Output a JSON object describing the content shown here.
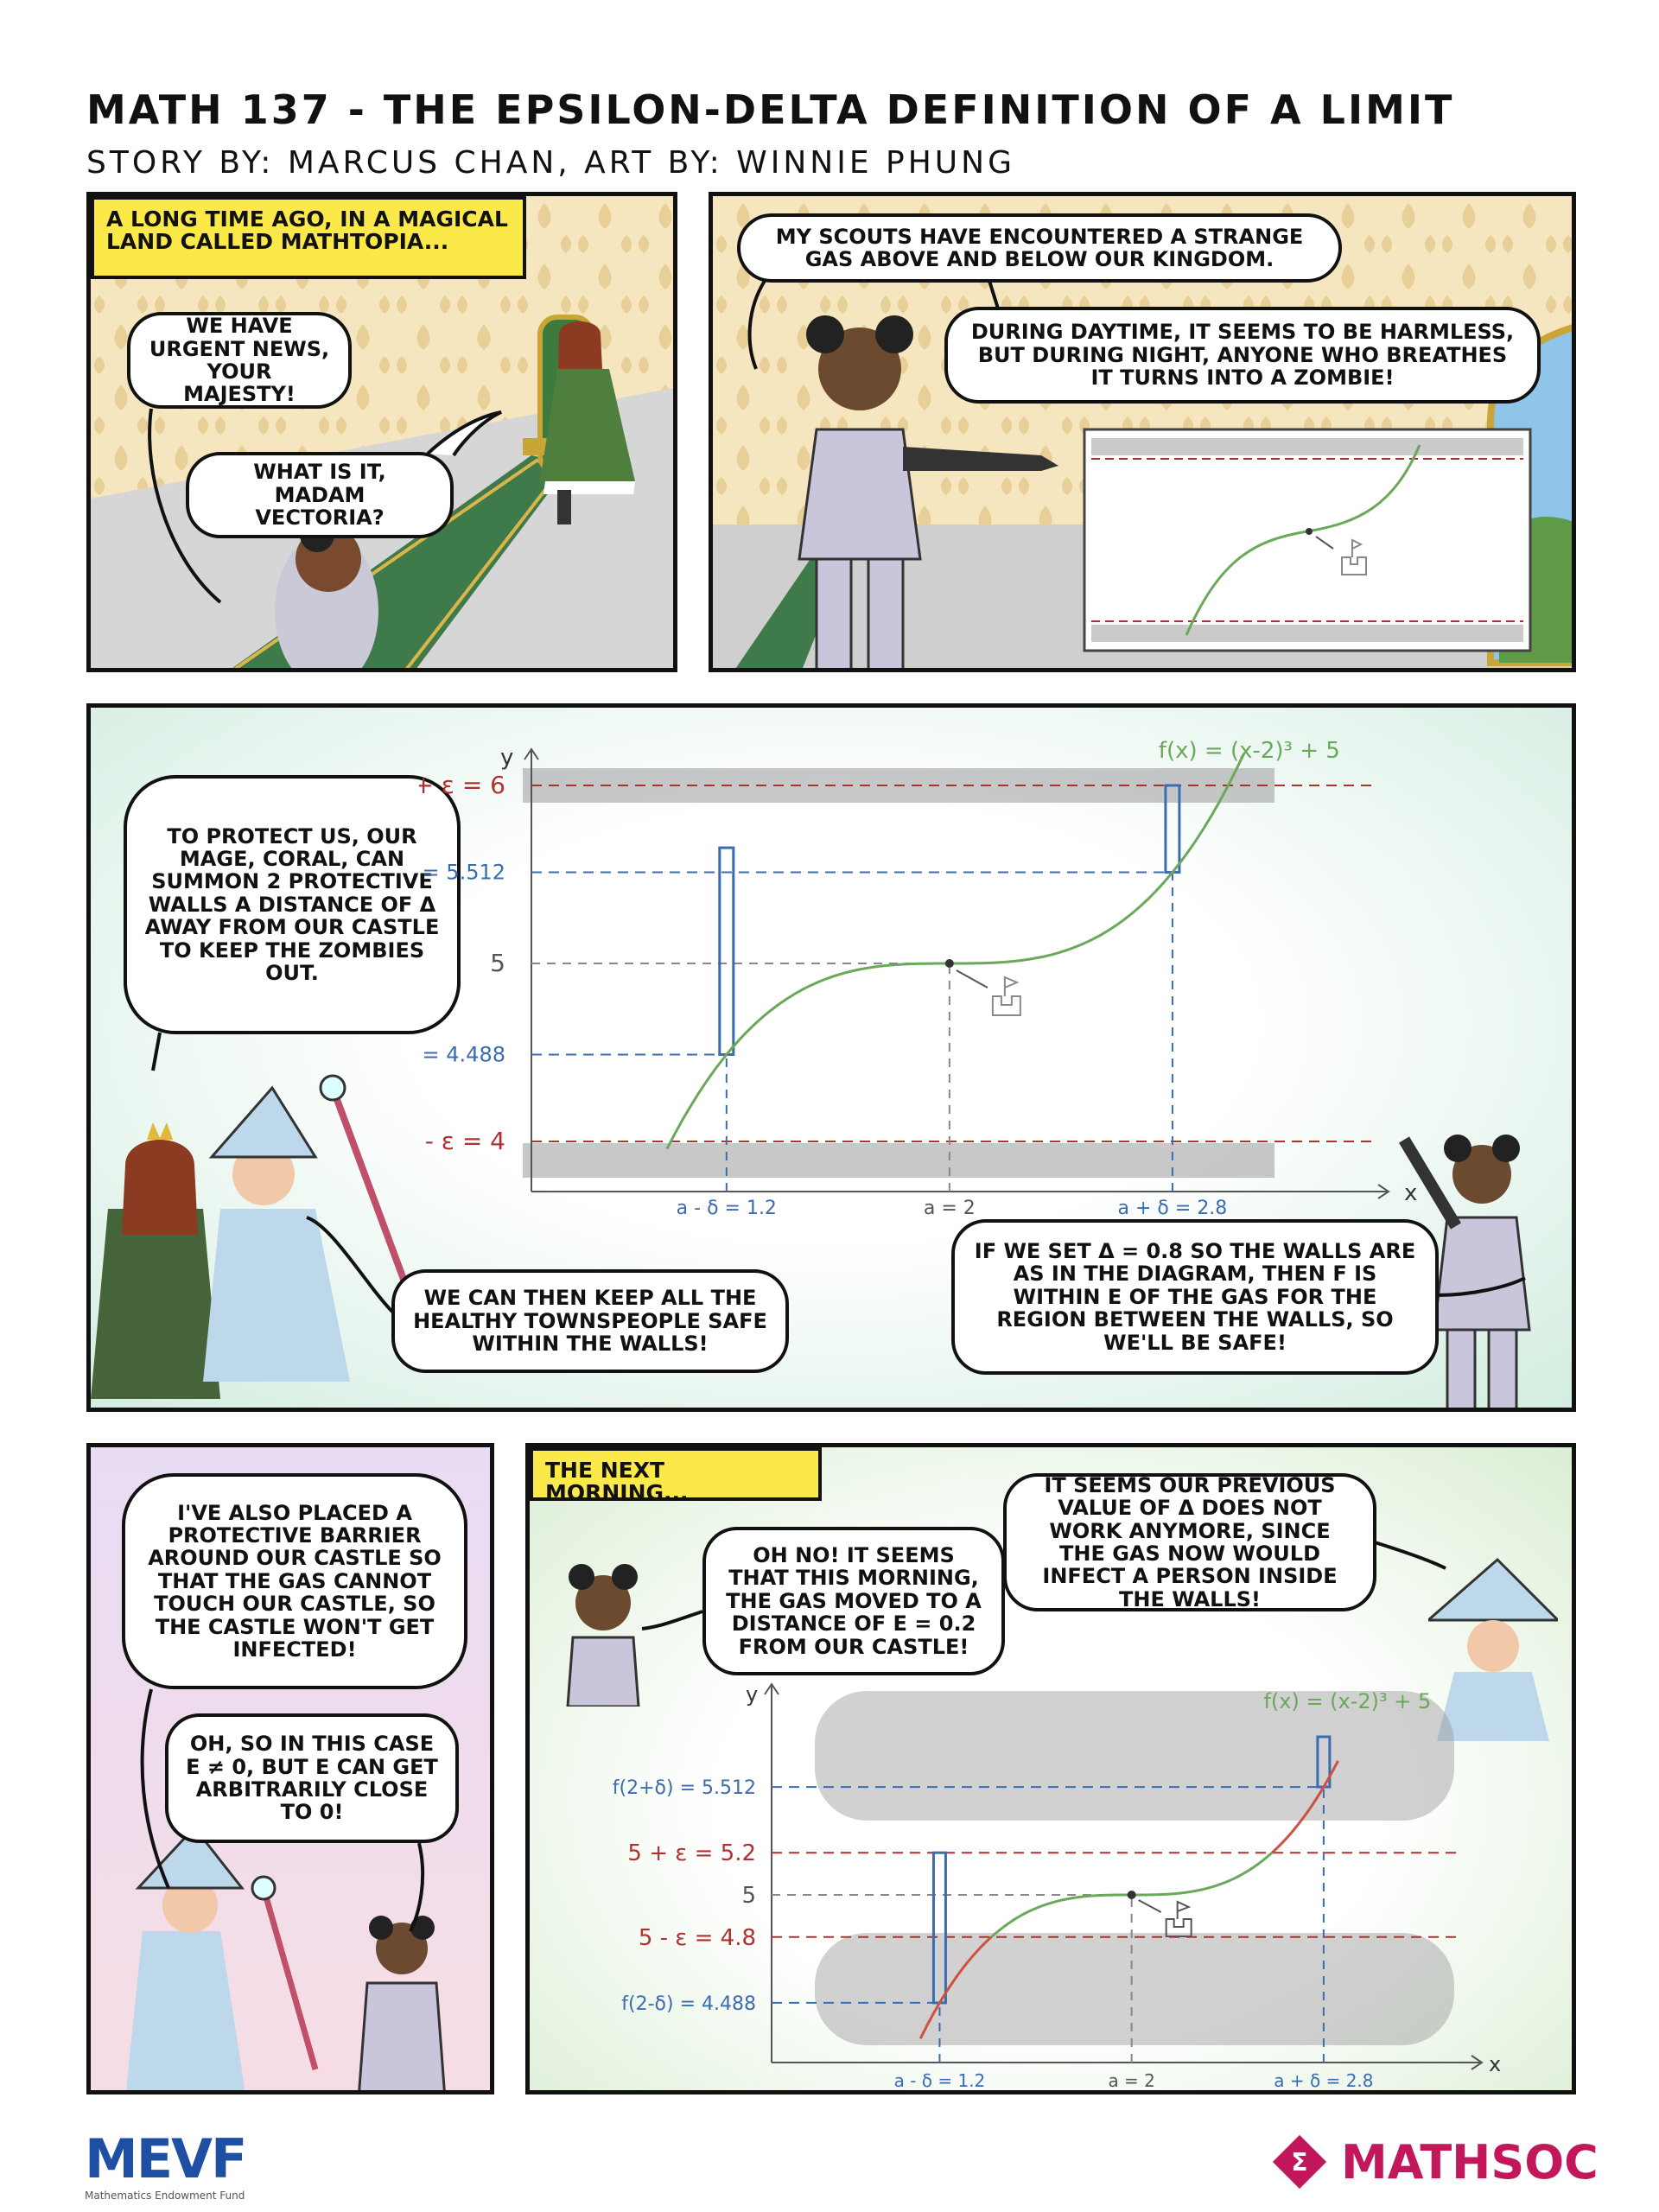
{
  "header": {
    "title": "MATH 137 - THE EPSILON-DELTA DEFINITION OF A LIMIT",
    "credits": "STORY BY: MARCUS CHAN, ART BY: WINNIE PHUNG"
  },
  "panel1": {
    "caption": "A LONG TIME AGO, IN A MAGICAL LAND CALLED MATHTOPIA...",
    "bubble_1": "WE HAVE URGENT NEWS, YOUR MAJESTY!",
    "bubble_2": "WHAT IS IT, MADAM VECTORIA?"
  },
  "panel2": {
    "bubble_1": "MY SCOUTS HAVE ENCOUNTERED A STRANGE GAS ABOVE AND BELOW OUR KINGDOM.",
    "bubble_2": "DURING DAYTIME, IT SEEMS TO BE HARMLESS, BUT DURING NIGHT, ANYONE WHO BREATHES IT TURNS INTO A ZOMBIE!"
  },
  "panel3": {
    "bubble_1": "TO PROTECT US, OUR MAGE, CORAL, CAN SUMMON 2 PROTECTIVE WALLS A DISTANCE OF δ AWAY FROM OUR CASTLE TO KEEP THE ZOMBIES OUT.",
    "bubble_2": "WE CAN THEN KEEP ALL THE HEALTHY TOWNSPEOPLE SAFE WITHIN THE WALLS!",
    "bubble_3": "IF WE SET δ = 0.8 SO THE WALLS ARE AS IN THE DIAGRAM, THEN f IS WITHIN ε OF THE GAS FOR THE REGION BETWEEN THE WALLS, SO WE'LL BE SAFE!",
    "graph": {
      "function_label": "f(x) = (x-2)³ + 5",
      "y_axis": "y",
      "x_axis": "x",
      "label_upper_eps": "5 + ε = 6",
      "label_f_plus": "f(2+δ) = 5.512",
      "label_five": "5",
      "label_f_minus": "f(2-δ) = 4.488",
      "label_lower_eps": "5 - ε = 4",
      "label_a_minus": "a - δ = 1.2",
      "label_a": "a = 2",
      "label_a_plus": "a + δ = 2.8"
    }
  },
  "panel4": {
    "bubble_1": "I'VE ALSO PLACED A PROTECTIVE BARRIER AROUND OUR CASTLE SO THAT THE GAS CANNOT TOUCH OUR CASTLE, SO THE CASTLE WON'T GET INFECTED!",
    "bubble_2": "OH, SO IN THIS CASE ε ≠ 0, BUT ε CAN GET ARBITRARILY CLOSE TO 0!"
  },
  "panel5": {
    "caption": "THE NEXT MORNING...",
    "bubble_1": "OH NO! IT SEEMS THAT THIS MORNING, THE GAS MOVED TO A DISTANCE OF ε = 0.2 FROM OUR CASTLE!",
    "bubble_2": "IT SEEMS OUR PREVIOUS VALUE OF δ DOES NOT WORK ANYMORE, SINCE THE GAS NOW WOULD INFECT A PERSON INSIDE THE WALLS!",
    "graph": {
      "function_label": "f(x) = (x-2)³ + 5",
      "y_axis": "y",
      "x_axis": "x",
      "label_f_plus": "f(2+δ) = 5.512",
      "label_upper_eps": "5 + ε = 5.2",
      "label_five": "5",
      "label_lower_eps": "5 - ε = 4.8",
      "label_f_minus": "f(2-δ) = 4.488",
      "label_a_minus": "a - δ = 1.2",
      "label_a": "a = 2",
      "label_a_plus": "a + δ = 2.8"
    }
  },
  "footer": {
    "mevf_logo": "MEVF",
    "mevf_sub": "Mathematics Endowment Fund",
    "mathsoc_logo": "MATHSOC"
  },
  "colors": {
    "caption_yellow": "#fbe94a",
    "curve_green": "#6aa85a",
    "curve_red": "#d05040",
    "eps_red": "#b03030",
    "delta_blue": "#3b6cb0",
    "mathsoc_magenta": "#c2185b",
    "mevf_blue": "#1f4fa3"
  }
}
